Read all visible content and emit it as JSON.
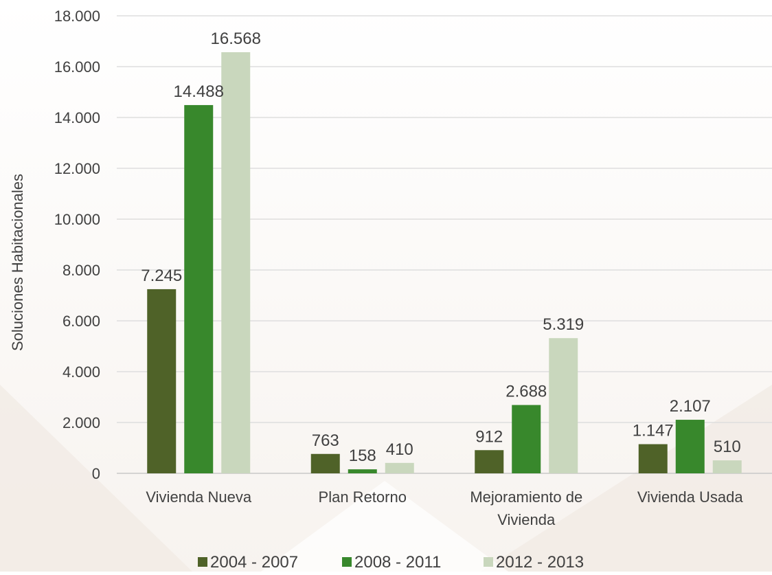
{
  "chart_data": {
    "type": "bar",
    "title": "",
    "xlabel": "",
    "ylabel": "Soluciones Habitacionales",
    "ylim": [
      0,
      18000
    ],
    "yticks": [
      0,
      2000,
      4000,
      6000,
      8000,
      10000,
      12000,
      14000,
      16000,
      18000
    ],
    "ytick_labels": [
      "0",
      "2.000",
      "4.000",
      "6.000",
      "8.000",
      "10.000",
      "12.000",
      "14.000",
      "16.000",
      "18.000"
    ],
    "grid": true,
    "legend_position": "bottom",
    "categories": [
      [
        "Vivienda Nueva"
      ],
      [
        "Plan Retorno"
      ],
      [
        "Mejoramiento de",
        "Vivienda"
      ],
      [
        "Vivienda Usada"
      ]
    ],
    "series": [
      {
        "name": "2004 - 2007",
        "color": "#4f6228",
        "values": [
          7245,
          763,
          912,
          1147
        ],
        "labels": [
          "7.245",
          "763",
          "912",
          "1.147"
        ]
      },
      {
        "name": "2008 - 2011",
        "color": "#38882c",
        "values": [
          14488,
          158,
          2688,
          2107
        ],
        "labels": [
          "14.488",
          "158",
          "2.688",
          "2.107"
        ]
      },
      {
        "name": "2012 - 2013",
        "color": "#c9d7bd",
        "values": [
          16568,
          410,
          5319,
          510
        ],
        "labels": [
          "16.568",
          "410",
          "5.319",
          "510"
        ]
      }
    ]
  }
}
